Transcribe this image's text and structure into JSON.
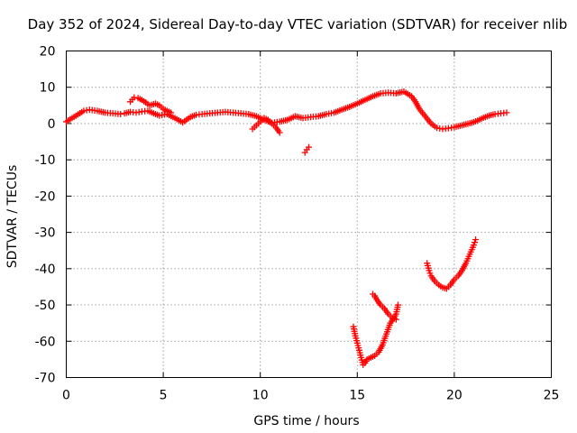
{
  "chart_data": {
    "type": "scatter",
    "title": "Day 352 of 2024, Sidereal Day-to-day VTEC variation (SDTVAR) for receiver nlib",
    "xlabel": "GPS time / hours",
    "ylabel": "SDTVAR / TECUs",
    "xlim": [
      0,
      25
    ],
    "ylim": [
      -70,
      20
    ],
    "xticks": [
      "0",
      "5",
      "10",
      "15",
      "20",
      "25"
    ],
    "xtick_values": [
      0,
      5,
      10,
      15,
      20,
      25
    ],
    "yticks": [
      "20",
      "10",
      "0",
      "-10",
      "-20",
      "-30",
      "-40",
      "-50",
      "-60",
      "-70"
    ],
    "ytick_values": [
      20,
      10,
      0,
      -10,
      -20,
      -30,
      -40,
      -50,
      -60,
      -70
    ],
    "grid": true,
    "marker": "plus",
    "color": "#ff0000",
    "series": [
      {
        "name": "main-trace",
        "x": [
          0.0,
          0.3,
          0.6,
          0.9,
          1.2,
          1.6,
          2.0,
          2.4,
          2.8,
          3.0,
          3.3,
          3.6,
          3.9,
          4.2,
          4.5,
          4.8,
          5.2,
          5.6,
          6.0,
          6.4,
          6.7,
          7.0,
          7.4,
          7.8,
          8.2,
          8.6,
          9.0,
          9.4,
          9.8,
          10.2,
          10.6,
          11.0,
          11.4,
          11.8,
          12.2,
          12.6,
          13.0,
          13.4,
          13.8,
          14.2,
          14.6,
          15.0,
          15.4,
          15.8,
          16.2,
          16.6,
          17.0,
          17.4,
          17.8,
          18.0,
          18.2,
          18.5,
          18.8,
          19.1,
          19.4,
          19.7,
          20.0,
          20.3,
          20.6,
          20.9,
          21.2,
          21.5,
          21.8,
          22.1,
          22.4,
          22.7
        ],
        "y": [
          0.5,
          1.5,
          2.5,
          3.5,
          3.8,
          3.5,
          3.0,
          2.8,
          2.6,
          2.8,
          3.2,
          3.0,
          3.3,
          3.5,
          2.8,
          2.2,
          2.6,
          1.5,
          0.3,
          1.8,
          2.4,
          2.6,
          2.8,
          3.0,
          3.2,
          3.0,
          2.8,
          2.6,
          2.0,
          1.0,
          0.2,
          0.5,
          1.0,
          2.0,
          1.5,
          1.8,
          2.0,
          2.6,
          3.0,
          3.8,
          4.6,
          5.5,
          6.5,
          7.5,
          8.3,
          8.5,
          8.3,
          8.8,
          7.5,
          6.0,
          4.0,
          2.0,
          0.0,
          -1.2,
          -1.5,
          -1.3,
          -1.0,
          -0.6,
          -0.2,
          0.2,
          0.8,
          1.6,
          2.2,
          2.6,
          2.8,
          3.0
        ]
      },
      {
        "name": "morning-blob",
        "x": [
          3.3,
          3.5,
          3.7,
          3.9,
          4.1,
          4.3,
          4.6,
          4.8,
          5.0,
          5.2,
          5.4
        ],
        "y": [
          6.0,
          7.2,
          7.0,
          6.5,
          5.8,
          5.0,
          5.5,
          5.0,
          4.0,
          3.5,
          3.0
        ]
      },
      {
        "name": "dip-10",
        "x": [
          9.6,
          9.8,
          10.0,
          10.2,
          10.4,
          10.6,
          10.8,
          11.0
        ],
        "y": [
          -1.5,
          -0.5,
          0.5,
          1.5,
          1.0,
          0.0,
          -1.0,
          -2.5
        ]
      },
      {
        "name": "isolated-12",
        "x": [
          12.3,
          12.4,
          12.5
        ],
        "y": [
          -8.0,
          -7.2,
          -6.5
        ]
      },
      {
        "name": "plunge-15",
        "x": [
          14.8,
          14.9,
          15.0,
          15.1,
          15.2,
          15.3,
          15.4,
          15.5,
          15.7,
          15.9,
          16.1,
          16.3,
          16.5,
          16.7,
          16.9,
          17.0,
          17.1
        ],
        "y": [
          -56.0,
          -58.5,
          -60.5,
          -62.5,
          -64.5,
          -66.5,
          -66.0,
          -65.0,
          -64.5,
          -64.0,
          -63.0,
          -61.0,
          -58.0,
          -55.0,
          -53.5,
          -52.5,
          -50.0
        ]
      },
      {
        "name": "bump-16",
        "x": [
          15.8,
          15.9,
          16.0,
          16.2,
          16.4,
          16.6,
          16.8,
          17.0
        ],
        "y": [
          -47.0,
          -47.5,
          -48.5,
          -50.0,
          -51.0,
          -52.5,
          -53.5,
          -54.0
        ]
      },
      {
        "name": "v-19",
        "x": [
          18.6,
          18.7,
          18.8,
          19.0,
          19.2,
          19.4,
          19.6,
          19.8,
          20.0,
          20.2,
          20.4,
          20.6,
          20.8,
          21.0,
          21.1
        ],
        "y": [
          -38.5,
          -40.5,
          -42.0,
          -43.5,
          -44.5,
          -45.2,
          -45.5,
          -44.5,
          -43.0,
          -42.0,
          -40.5,
          -38.5,
          -36.0,
          -33.5,
          -32.0
        ]
      }
    ]
  }
}
